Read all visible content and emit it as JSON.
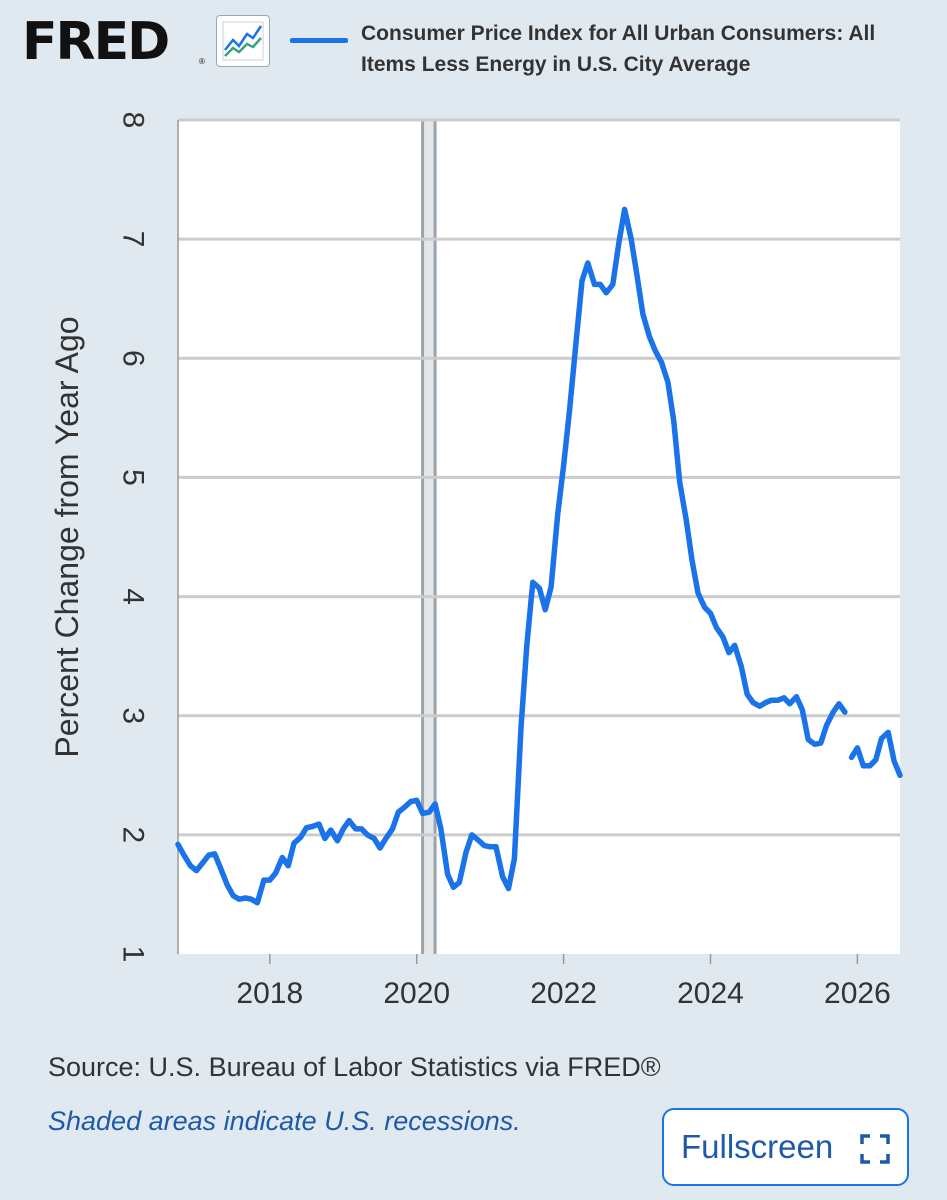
{
  "logo": {
    "text": "FRED",
    "registered": "®",
    "icon": "line-graph-icon"
  },
  "legend": {
    "series_label": "Consumer Price Index for All Urban Consumers: All Items Less Energy in U.S. City Average"
  },
  "footer": {
    "source": "Source: U.S. Bureau of Labor Statistics via FRED®",
    "recession_note": "Shaded areas indicate U.S. recessions.",
    "fullscreen_label": "Fullscreen",
    "fullscreen_icon": "expand-icon"
  },
  "colors": {
    "background": "#e1e9f0",
    "plot_background": "#ffffff",
    "series": "#1a73e8",
    "grid": "#cccccc",
    "recession": "#9ca3ab"
  },
  "chart_data": {
    "type": "line",
    "title": "",
    "xlabel": "",
    "ylabel": "Percent Change from Year Ago",
    "xlim": [
      2016.75,
      2026.58
    ],
    "ylim": [
      1,
      8
    ],
    "yticks": [
      1,
      2,
      3,
      4,
      5,
      6,
      7,
      8
    ],
    "xticks": [
      2018,
      2020,
      2022,
      2024,
      2026
    ],
    "grid": true,
    "recessions": [
      [
        2020.08,
        2020.25
      ]
    ],
    "series": [
      {
        "name": "Consumer Price Index for All Urban Consumers: All Items Less Energy in U.S. City Average",
        "segments": [
          [
            [
              2016.75,
              1.92
            ],
            [
              2016.83,
              1.83
            ],
            [
              2016.92,
              1.74
            ],
            [
              2017.0,
              1.7
            ],
            [
              2017.08,
              1.76
            ],
            [
              2017.17,
              1.83
            ],
            [
              2017.25,
              1.84
            ],
            [
              2017.33,
              1.72
            ],
            [
              2017.42,
              1.58
            ],
            [
              2017.5,
              1.49
            ],
            [
              2017.58,
              1.46
            ],
            [
              2017.67,
              1.47
            ],
            [
              2017.75,
              1.46
            ],
            [
              2017.83,
              1.43
            ],
            [
              2017.92,
              1.62
            ],
            [
              2018.0,
              1.62
            ],
            [
              2018.08,
              1.68
            ],
            [
              2018.17,
              1.81
            ],
            [
              2018.25,
              1.74
            ],
            [
              2018.33,
              1.93
            ],
            [
              2018.42,
              1.98
            ],
            [
              2018.5,
              2.06
            ],
            [
              2018.58,
              2.07
            ],
            [
              2018.67,
              2.09
            ],
            [
              2018.75,
              1.97
            ],
            [
              2018.83,
              2.04
            ],
            [
              2018.92,
              1.95
            ],
            [
              2019.0,
              2.05
            ],
            [
              2019.08,
              2.12
            ],
            [
              2019.17,
              2.05
            ],
            [
              2019.25,
              2.05
            ],
            [
              2019.33,
              2.0
            ],
            [
              2019.42,
              1.97
            ],
            [
              2019.5,
              1.89
            ],
            [
              2019.58,
              1.97
            ],
            [
              2019.67,
              2.05
            ],
            [
              2019.75,
              2.19
            ],
            [
              2019.83,
              2.23
            ],
            [
              2019.92,
              2.28
            ],
            [
              2020.0,
              2.29
            ],
            [
              2020.08,
              2.18
            ],
            [
              2020.17,
              2.19
            ],
            [
              2020.25,
              2.26
            ],
            [
              2020.33,
              2.05
            ],
            [
              2020.42,
              1.67
            ],
            [
              2020.5,
              1.56
            ],
            [
              2020.58,
              1.6
            ],
            [
              2020.67,
              1.85
            ],
            [
              2020.75,
              2.0
            ],
            [
              2020.83,
              1.96
            ],
            [
              2020.92,
              1.91
            ],
            [
              2021.0,
              1.9
            ],
            [
              2021.08,
              1.9
            ],
            [
              2021.17,
              1.65
            ],
            [
              2021.25,
              1.55
            ],
            [
              2021.33,
              1.8
            ],
            [
              2021.42,
              2.9
            ],
            [
              2021.5,
              3.6
            ],
            [
              2021.58,
              4.12
            ],
            [
              2021.67,
              4.07
            ],
            [
              2021.75,
              3.89
            ],
            [
              2021.83,
              4.08
            ],
            [
              2021.92,
              4.69
            ],
            [
              2022.0,
              5.1
            ],
            [
              2022.08,
              5.56
            ],
            [
              2022.17,
              6.14
            ],
            [
              2022.25,
              6.65
            ],
            [
              2022.33,
              6.8
            ],
            [
              2022.42,
              6.62
            ],
            [
              2022.5,
              6.62
            ],
            [
              2022.58,
              6.55
            ],
            [
              2022.67,
              6.62
            ],
            [
              2022.75,
              6.96
            ],
            [
              2022.83,
              7.25
            ],
            [
              2022.92,
              7.0
            ],
            [
              2023.0,
              6.69
            ],
            [
              2023.08,
              6.37
            ],
            [
              2023.17,
              6.18
            ],
            [
              2023.25,
              6.06
            ],
            [
              2023.33,
              5.97
            ],
            [
              2023.42,
              5.8
            ],
            [
              2023.5,
              5.47
            ],
            [
              2023.58,
              4.96
            ],
            [
              2023.67,
              4.64
            ],
            [
              2023.75,
              4.3
            ],
            [
              2023.83,
              4.03
            ],
            [
              2023.92,
              3.91
            ],
            [
              2024.0,
              3.86
            ],
            [
              2024.08,
              3.74
            ],
            [
              2024.17,
              3.66
            ],
            [
              2024.25,
              3.53
            ],
            [
              2024.33,
              3.59
            ],
            [
              2024.42,
              3.41
            ],
            [
              2024.5,
              3.18
            ],
            [
              2024.58,
              3.11
            ],
            [
              2024.67,
              3.08
            ],
            [
              2024.75,
              3.11
            ],
            [
              2024.83,
              3.13
            ],
            [
              2024.92,
              3.13
            ],
            [
              2025.0,
              3.15
            ],
            [
              2025.08,
              3.1
            ],
            [
              2025.17,
              3.16
            ],
            [
              2025.25,
              3.05
            ],
            [
              2025.33,
              2.8
            ],
            [
              2025.42,
              2.76
            ],
            [
              2025.5,
              2.77
            ],
            [
              2025.58,
              2.92
            ],
            [
              2025.67,
              3.03
            ],
            [
              2025.75,
              3.1
            ],
            [
              2025.83,
              3.03
            ]
          ],
          [
            [
              2025.92,
              2.65
            ],
            [
              2026.0,
              2.73
            ],
            [
              2026.08,
              2.58
            ],
            [
              2026.17,
              2.58
            ],
            [
              2026.25,
              2.63
            ],
            [
              2026.33,
              2.81
            ],
            [
              2026.42,
              2.86
            ],
            [
              2026.5,
              2.62
            ],
            [
              2026.58,
              2.5
            ]
          ]
        ]
      }
    ]
  }
}
